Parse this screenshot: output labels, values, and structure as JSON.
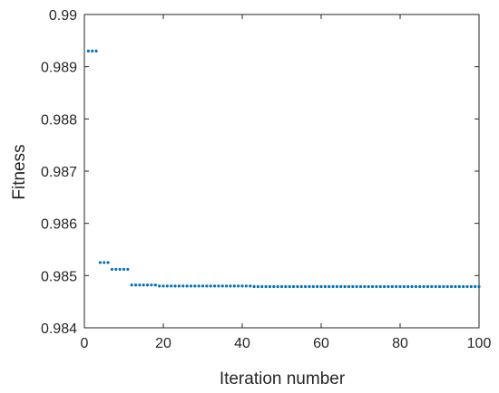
{
  "chart_data": {
    "type": "scatter",
    "title": "",
    "xlabel": "Iteration number",
    "ylabel": "Fitness",
    "xlim": [
      0,
      100
    ],
    "ylim": [
      0.984,
      0.99
    ],
    "x_ticks": [
      0,
      20,
      40,
      60,
      80,
      100
    ],
    "x_tick_labels": [
      "0",
      "20",
      "40",
      "60",
      "80",
      "100"
    ],
    "y_ticks": [
      0.984,
      0.985,
      0.986,
      0.987,
      0.988,
      0.989,
      0.99
    ],
    "y_tick_labels": [
      "0.984",
      "0.985",
      "0.986",
      "0.987",
      "0.988",
      "0.989",
      "0.99"
    ],
    "grid": false,
    "marker_color": "#0072BD",
    "series": [
      {
        "x": [
          1,
          2,
          3,
          4,
          5,
          6,
          7,
          8,
          9,
          10,
          11,
          12,
          13,
          14,
          15,
          16,
          17,
          18,
          19,
          20,
          21,
          22,
          23,
          24,
          25,
          26,
          27,
          28,
          29,
          30,
          31,
          32,
          33,
          34,
          35,
          36,
          37,
          38,
          39,
          40,
          41,
          42,
          43,
          44,
          45,
          46,
          47,
          48,
          49,
          50,
          51,
          52,
          53,
          54,
          55,
          56,
          57,
          58,
          59,
          60,
          61,
          62,
          63,
          64,
          65,
          66,
          67,
          68,
          69,
          70,
          71,
          72,
          73,
          74,
          75,
          76,
          77,
          78,
          79,
          80,
          81,
          82,
          83,
          84,
          85,
          86,
          87,
          88,
          89,
          90,
          91,
          92,
          93,
          94,
          95,
          96,
          97,
          98,
          99,
          100
        ],
        "y": [
          0.9893,
          0.9893,
          0.9893,
          0.98525,
          0.98525,
          0.98525,
          0.98512,
          0.98512,
          0.98512,
          0.98512,
          0.98512,
          0.98482,
          0.98482,
          0.98482,
          0.98482,
          0.98482,
          0.98482,
          0.98482,
          0.9848,
          0.9848,
          0.9848,
          0.9848,
          0.9848,
          0.9848,
          0.9848,
          0.9848,
          0.9848,
          0.9848,
          0.9848,
          0.9848,
          0.9848,
          0.9848,
          0.9848,
          0.9848,
          0.9848,
          0.9848,
          0.9848,
          0.9848,
          0.9848,
          0.9848,
          0.9848,
          0.9848,
          0.98479,
          0.98479,
          0.98479,
          0.98479,
          0.98479,
          0.98479,
          0.98479,
          0.98479,
          0.98479,
          0.98479,
          0.98479,
          0.98479,
          0.98479,
          0.98479,
          0.98479,
          0.98479,
          0.98479,
          0.98479,
          0.98479,
          0.98479,
          0.98479,
          0.98479,
          0.98479,
          0.98479,
          0.98479,
          0.98479,
          0.98479,
          0.98479,
          0.98479,
          0.98479,
          0.98479,
          0.98479,
          0.98479,
          0.98479,
          0.98479,
          0.98479,
          0.98479,
          0.98479,
          0.98479,
          0.98479,
          0.98479,
          0.98479,
          0.98479,
          0.98479,
          0.98479,
          0.98479,
          0.98479,
          0.98479,
          0.98479,
          0.98479,
          0.98479,
          0.98479,
          0.98479,
          0.98479,
          0.98479,
          0.98479,
          0.98479,
          0.98479
        ]
      }
    ]
  }
}
